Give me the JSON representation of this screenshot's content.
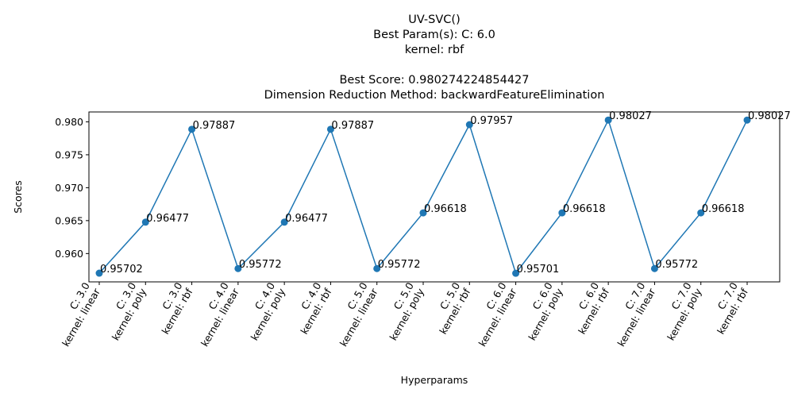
{
  "chart_data": {
    "type": "line",
    "title_lines": [
      "UV-SVC()",
      "Best Param(s): C: 6.0",
      "kernel: rbf",
      "",
      "Best Score: 0.980274224854427",
      "Dimension Reduction Method: backwardFeatureElimination"
    ],
    "xlabel": "Hyperparams",
    "ylabel": "Scores",
    "categories": [
      [
        "C: 3.0",
        "kernel: linear"
      ],
      [
        "C: 3.0",
        "kernel: poly"
      ],
      [
        "C: 3.0",
        "kernel: rbf"
      ],
      [
        "C: 4.0",
        "kernel: linear"
      ],
      [
        "C: 4.0",
        "kernel: poly"
      ],
      [
        "C: 4.0",
        "kernel: rbf"
      ],
      [
        "C: 5.0",
        "kernel: linear"
      ],
      [
        "C: 5.0",
        "kernel: poly"
      ],
      [
        "C: 5.0",
        "kernel: rbf"
      ],
      [
        "C: 6.0",
        "kernel: linear"
      ],
      [
        "C: 6.0",
        "kernel: poly"
      ],
      [
        "C: 6.0",
        "kernel: rbf"
      ],
      [
        "C: 7.0",
        "kernel: linear"
      ],
      [
        "C: 7.0",
        "kernel: poly"
      ],
      [
        "C: 7.0",
        "kernel: rbf"
      ]
    ],
    "values": [
      0.95702,
      0.96477,
      0.97887,
      0.95772,
      0.96477,
      0.97887,
      0.95772,
      0.96618,
      0.97957,
      0.95701,
      0.96618,
      0.98027,
      0.95772,
      0.96618,
      0.98027
    ],
    "data_labels": [
      "0.95702",
      "0.96477",
      "0.97887",
      "0.95772",
      "0.96477",
      "0.97887",
      "0.95772",
      "0.96618",
      "0.97957",
      "0.95701",
      "0.96618",
      "0.98027",
      "0.95772",
      "0.96618",
      "0.98027"
    ],
    "yticks": [
      0.96,
      0.965,
      0.97,
      0.975,
      0.98
    ],
    "ytick_labels": [
      "0.960",
      "0.965",
      "0.970",
      "0.975",
      "0.980"
    ],
    "ylim": [
      0.9557,
      0.9815
    ],
    "grid": false,
    "line_color": "#1f77b4",
    "marker": "circle"
  }
}
